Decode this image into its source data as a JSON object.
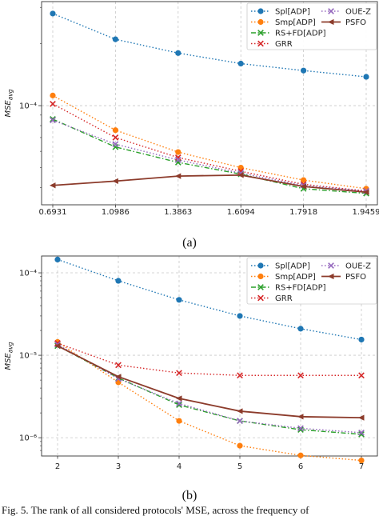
{
  "caption": "Fig. 5.  The rank of all considered protocols' MSE, across the frequency of",
  "chart_data": [
    {
      "type": "line",
      "subfigure_label": "(a)",
      "ylabel": "MSE_avg",
      "yscale": "log",
      "ylim": [
        3.3e-05,
        0.00032
      ],
      "ytick_labels": [
        {
          "value": 0.0001,
          "label": "10^-4"
        }
      ],
      "x": [
        0.6931,
        1.0986,
        1.3863,
        1.6094,
        1.7918,
        1.9459
      ],
      "xtick_labels": [
        "0.6931",
        "1.0986",
        "1.3863",
        "1.6094",
        "1.7918",
        "1.9459"
      ],
      "grid": true,
      "legend_position": "top-right",
      "series": [
        {
          "name": "Spl[ADP]",
          "color": "#1f77b4",
          "linestyle": "dotted",
          "marker": "circle",
          "values": [
            0.00028,
            0.00021,
            0.00018,
            0.00016,
            0.000148,
            0.000138
          ]
        },
        {
          "name": "Smp[ADP]",
          "color": "#ff7f0e",
          "linestyle": "dotted",
          "marker": "circle",
          "values": [
            0.000112,
            7.6e-05,
            5.95e-05,
            5e-05,
            4.35e-05,
            3.95e-05
          ]
        },
        {
          "name": "RS+FD[ADP]",
          "color": "#2ca02c",
          "linestyle": "dashdot",
          "marker": "x",
          "values": [
            8.6e-05,
            6.3e-05,
            5.3e-05,
            4.65e-05,
            3.95e-05,
            3.75e-05
          ]
        },
        {
          "name": "GRR",
          "color": "#d62728",
          "linestyle": "dotted",
          "marker": "x",
          "values": [
            0.000102,
            7e-05,
            5.6e-05,
            4.8e-05,
            4.15e-05,
            3.85e-05
          ]
        },
        {
          "name": "OUE-Z",
          "color": "#9467bd",
          "linestyle": "dotted",
          "marker": "x",
          "values": [
            8.5e-05,
            6.5e-05,
            5.45e-05,
            4.7e-05,
            4.1e-05,
            3.85e-05
          ]
        },
        {
          "name": "PSFO",
          "color": "#8c3b2b",
          "linestyle": "solid",
          "marker": "triangle-left",
          "values": [
            4.1e-05,
            4.3e-05,
            4.55e-05,
            4.6e-05,
            4.05e-05,
            3.8e-05
          ]
        }
      ]
    },
    {
      "type": "line",
      "subfigure_label": "(b)",
      "ylabel": "MSE_avg",
      "yscale": "log",
      "ylim": [
        6e-07,
        0.00016
      ],
      "ytick_labels": [
        {
          "value": 0.0001,
          "label": "10^-4"
        },
        {
          "value": 1e-05,
          "label": "10^-5"
        },
        {
          "value": 1e-06,
          "label": "10^-6"
        }
      ],
      "x": [
        2,
        3,
        4,
        5,
        6,
        7
      ],
      "xtick_labels": [
        "2",
        "3",
        "4",
        "5",
        "6",
        "7"
      ],
      "grid": true,
      "legend_position": "top-right",
      "series": [
        {
          "name": "Spl[ADP]",
          "color": "#1f77b4",
          "linestyle": "dotted",
          "marker": "circle",
          "values": [
            0.000145,
            8e-05,
            4.7e-05,
            3e-05,
            2.1e-05,
            1.55e-05
          ]
        },
        {
          "name": "Smp[ADP]",
          "color": "#ff7f0e",
          "linestyle": "dotted",
          "marker": "circle",
          "values": [
            1.45e-05,
            4.7e-06,
            1.6e-06,
            8e-07,
            6.1e-07,
            5.3e-07
          ]
        },
        {
          "name": "RS+FD[ADP]",
          "color": "#2ca02c",
          "linestyle": "dashdot",
          "marker": "x",
          "values": [
            1.3e-05,
            5.3e-06,
            2.5e-06,
            1.6e-06,
            1.25e-06,
            1.1e-06
          ]
        },
        {
          "name": "GRR",
          "color": "#d62728",
          "linestyle": "dotted",
          "marker": "x",
          "values": [
            1.4e-05,
            7.6e-06,
            6.1e-06,
            5.7e-06,
            5.7e-06,
            5.7e-06
          ]
        },
        {
          "name": "OUE-Z",
          "color": "#9467bd",
          "linestyle": "dotted",
          "marker": "x",
          "values": [
            1.35e-05,
            5.2e-06,
            2.6e-06,
            1.6e-06,
            1.3e-06,
            1.15e-06
          ]
        },
        {
          "name": "PSFO",
          "color": "#8c3b2b",
          "linestyle": "solid",
          "marker": "triangle-left",
          "values": [
            1.3e-05,
            5.5e-06,
            3e-06,
            2.1e-06,
            1.8e-06,
            1.75e-06
          ]
        }
      ]
    }
  ]
}
